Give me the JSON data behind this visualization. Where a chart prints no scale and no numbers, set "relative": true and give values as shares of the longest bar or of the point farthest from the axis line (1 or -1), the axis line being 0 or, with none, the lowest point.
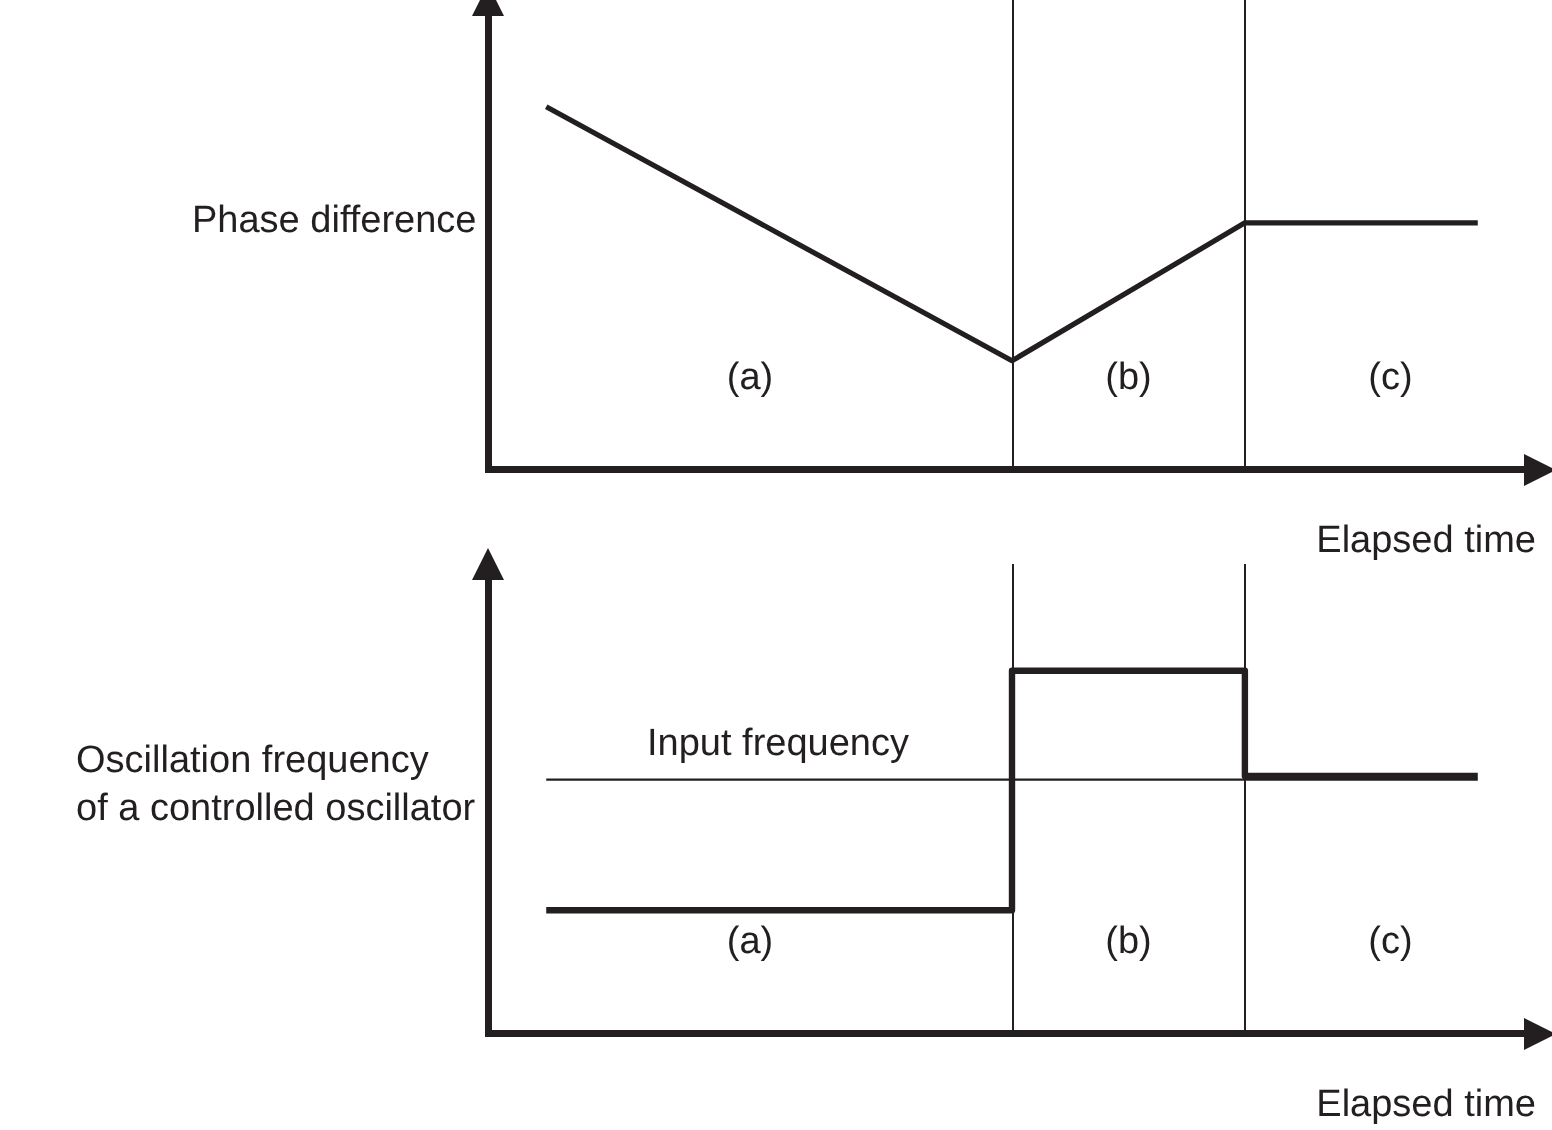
{
  "chart_data": [
    {
      "type": "line",
      "ylabel": "Phase difference",
      "xlabel": "Elapsed time",
      "relative": true,
      "categories": [
        null,
        null,
        null,
        null,
        null,
        null,
        null,
        null,
        null
      ],
      "grid": false,
      "marker": "none",
      "series": [
        {
          "color": "#231f20",
          "values": [
            1,
            0.825,
            0.65,
            0.475,
            0.3,
            0.49,
            0.68,
            0.68,
            0.68
          ]
        }
      ],
      "annotations": [
        "(a)",
        "(b)",
        "(c)"
      ]
    },
    {
      "type": "step",
      "ylabel": "Oscillation frequency\nof a controlled oscillator",
      "xlabel": "Elapsed time",
      "relative": true,
      "categories": [
        null,
        null,
        null,
        null,
        null,
        null,
        null,
        null,
        null
      ],
      "grid": false,
      "marker": "none",
      "series": [
        {
          "color": "#231f20",
          "values": [
            0.34,
            0.34,
            0.34,
            0.34,
            1,
            1,
            0.71,
            0.71,
            0.71
          ]
        },
        {
          "type": "line",
          "name": "Input frequency",
          "color": "#231f20",
          "values": [
            0.7,
            0.7,
            0.7,
            0.7,
            0.7,
            0.7,
            0.7,
            0.7,
            0.7
          ]
        }
      ],
      "annotations": [
        "(a)",
        "(b)",
        "(c)"
      ]
    }
  ]
}
